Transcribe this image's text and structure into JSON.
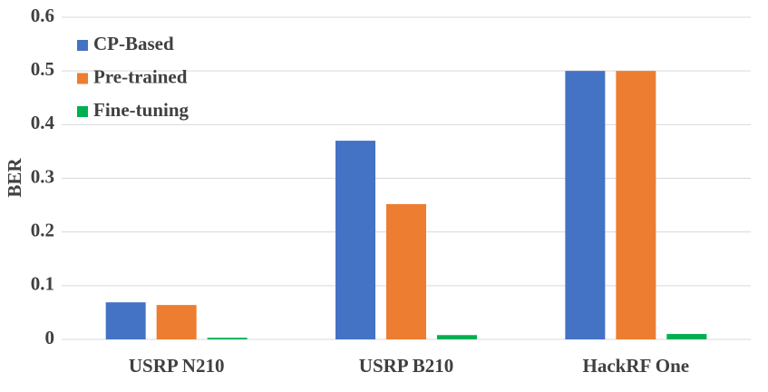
{
  "chart_data": {
    "type": "bar",
    "y_label": "BER",
    "categories": [
      "USRP N210",
      "USRP B210",
      "HackRF One"
    ],
    "series": [
      {
        "name": "CP-Based",
        "color": "#4472c4",
        "values": [
          0.069,
          0.37,
          0.5
        ]
      },
      {
        "name": "Pre-trained",
        "color": "#ed7d31",
        "values": [
          0.064,
          0.252,
          0.5
        ]
      },
      {
        "name": "Fine-tuning",
        "color": "#00b050",
        "values": [
          0.003,
          0.008,
          0.01
        ]
      }
    ],
    "ylim": [
      0,
      0.6
    ],
    "yticks": [
      0,
      0.1,
      0.2,
      0.3,
      0.4,
      0.5,
      0.6
    ],
    "grid": true,
    "legend": "top-left"
  }
}
